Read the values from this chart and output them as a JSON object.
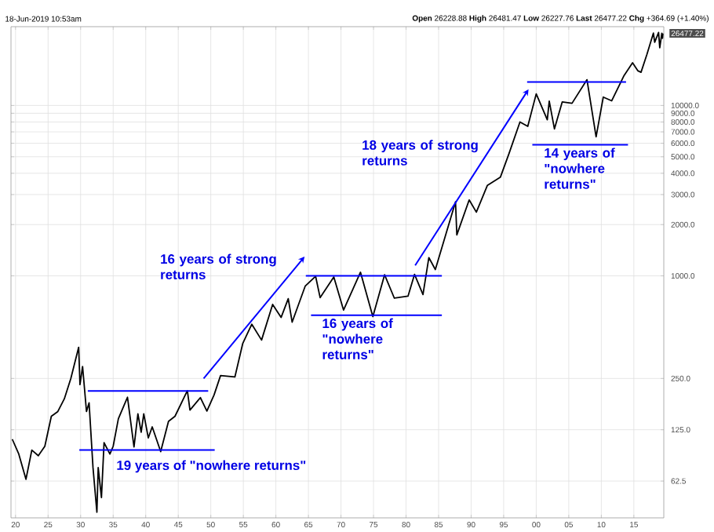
{
  "chart_data": {
    "type": "line",
    "log": "y",
    "grid": true,
    "annotations": [
      "18-Jun-2019 10:53am",
      "**Open** 26228.88 **High** 26481.47 **Low** 26227.76 **Last** 26477.22 **Chg** +364.69 (+1.40%)",
      {
        "text": "26477.22",
        "x": 2019.46,
        "y": 26477.22
      },
      "16 years of strong returns",
      "16 years of \"nowhere returns\"",
      "18 years of strong returns",
      "14 years of \"nowhere returns\"",
      "19 years of \"nowhere returns\""
    ],
    "xlim": [
      1919.3,
      2019.6
    ],
    "xticks": [
      {
        "value": 1920,
        "label": "20"
      },
      {
        "value": 1925,
        "label": "25"
      },
      {
        "value": 1930,
        "label": "30"
      },
      {
        "value": 1935,
        "label": "35"
      },
      {
        "value": 1940,
        "label": "40"
      },
      {
        "value": 1945,
        "label": "45"
      },
      {
        "value": 1950,
        "label": "50"
      },
      {
        "value": 1955,
        "label": "55"
      },
      {
        "value": 1960,
        "label": "60"
      },
      {
        "value": 1965,
        "label": "65"
      },
      {
        "value": 1970,
        "label": "70"
      },
      {
        "value": 1975,
        "label": "75"
      },
      {
        "value": 1980,
        "label": "80"
      },
      {
        "value": 1985,
        "label": "85"
      },
      {
        "value": 1990,
        "label": "90"
      },
      {
        "value": 1995,
        "label": "95"
      },
      {
        "value": 2000,
        "label": "00"
      },
      {
        "value": 2005,
        "label": "05"
      },
      {
        "value": 2010,
        "label": "10"
      },
      {
        "value": 2015,
        "label": "15"
      }
    ],
    "ylim": [
      38,
      29000
    ],
    "yticks": [
      62.5,
      {
        "value": 125,
        "label": "125.0"
      },
      {
        "value": 250,
        "label": "250.0"
      },
      {
        "value": 1000,
        "label": "1000.0"
      },
      {
        "value": 2000,
        "label": "2000.0"
      },
      {
        "value": 3000,
        "label": "3000.0"
      },
      {
        "value": 4000,
        "label": "4000.0"
      },
      {
        "value": 5000,
        "label": "5000.0"
      },
      {
        "value": 6000,
        "label": "6000.0"
      },
      {
        "value": 7000,
        "label": "7000.0"
      },
      {
        "value": 8000,
        "label": "8000.0"
      },
      {
        "value": 9000,
        "label": "9000.0"
      },
      {
        "value": 10000,
        "label": "10000.0"
      }
    ],
    "series": [
      {
        "color": "#000000",
        "x": [
          1919.5,
          1920.5,
          1921.6,
          1922.5,
          1923.5,
          1924.5,
          1925.5,
          1926.5,
          1927.5,
          1928.5,
          1929.7,
          1929.9,
          1930.3,
          1930.9,
          1931.3,
          1931.9,
          1932.5,
          1932.7,
          1933.2,
          1933.6,
          1934.5,
          1935.0,
          1935.8,
          1937.2,
          1938.2,
          1938.8,
          1939.3,
          1939.7,
          1940.4,
          1941.0,
          1942.3,
          1943.5,
          1944.5,
          1946.4,
          1946.8,
          1948.4,
          1949.4,
          1950.5,
          1951.5,
          1953.7,
          1954.9,
          1956.3,
          1957.8,
          1959.5,
          1960.8,
          1961.9,
          1962.5,
          1964.5,
          1966.1,
          1966.8,
          1968.9,
          1970.4,
          1973.0,
          1974.9,
          1976.7,
          1978.2,
          1980.3,
          1981.3,
          1982.6,
          1983.5,
          1984.5,
          1987.6,
          1987.8,
          1989.7,
          1990.8,
          1992.5,
          1994.5,
          1995.8,
          1997.5,
          1998.7,
          2000.0,
          2001.7,
          2002.0,
          2002.8,
          2004.0,
          2005.5,
          2007.8,
          2009.2,
          2010.3,
          2011.6,
          2013.5,
          2014.8,
          2015.6,
          2016.1,
          2017.0,
          2018.0,
          2018.2,
          2018.8,
          2018.98,
          2019.3,
          2019.4,
          2019.46
        ],
        "values": [
          110,
          90,
          64,
          95,
          88,
          100,
          150,
          160,
          190,
          250,
          381,
          230,
          294,
          160,
          180,
          75,
          41,
          75,
          50,
          105,
          90,
          100,
          145,
          194,
          99,
          155,
          121,
          155,
          112,
          130,
          93,
          140,
          150,
          212,
          163,
          193,
          161,
          200,
          260,
          255,
          400,
          520,
          420,
          680,
          570,
          735,
          535,
          870,
          995,
          745,
          985,
          630,
          1050,
          577,
          1015,
          740,
          760,
          1020,
          777,
          1280,
          1090,
          2720,
          1740,
          2790,
          2365,
          3400,
          3800,
          5200,
          8000,
          7540,
          11700,
          8240,
          10600,
          7280,
          10500,
          10300,
          14160,
          6550,
          11200,
          10650,
          15000,
          17800,
          16000,
          15660,
          19900,
          26600,
          23500,
          26800,
          21800,
          26500,
          24800,
          26477.22
        ]
      },
      {
        "color": "#0000ff",
        "x": [
          1931.1,
          1949.6
        ],
        "values": [
          211,
          211
        ]
      },
      {
        "color": "#0000ff",
        "x": [
          1929.8,
          1950.6
        ],
        "values": [
          95,
          95
        ]
      },
      {
        "color": "#0000ff",
        "x": [
          1948.9,
          1963.8
        ],
        "values": [
          250,
          1216
        ]
      },
      {
        "color": "#0000ff",
        "x": [
          1964.6,
          1985.5
        ],
        "values": [
          1000,
          1000
        ]
      },
      {
        "color": "#0000ff",
        "x": [
          1965.4,
          1985.5
        ],
        "values": [
          588,
          588
        ]
      },
      {
        "color": "#0000ff",
        "x": [
          1981.4,
          1998.3
        ],
        "values": [
          1151,
          11600
        ]
      },
      {
        "color": "#0000ff",
        "x": [
          1998.6,
          2013.8
        ],
        "values": [
          13730,
          13730
        ]
      },
      {
        "color": "#0000ff",
        "x": [
          1999.4,
          2014.1
        ],
        "values": [
          5880,
          5880
        ]
      }
    ]
  }
}
